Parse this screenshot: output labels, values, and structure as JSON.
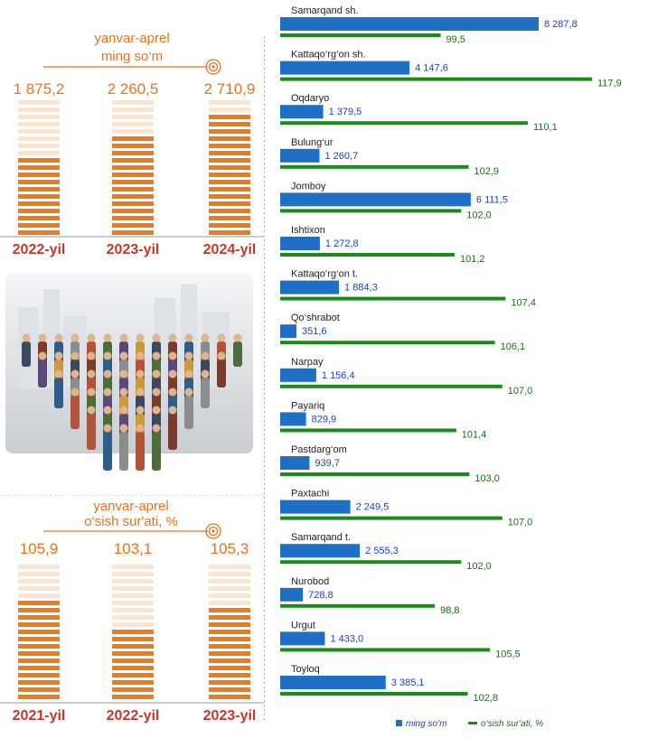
{
  "top_panel": {
    "title_line1": "yanvar-aprel",
    "title_line2": "ming so‘m"
  },
  "bottom_panel": {
    "title_line1": "yanvar-aprel",
    "title_line2": "o‘sish sur'ati, %"
  },
  "colors": {
    "orange": "#f07a1a",
    "orange_light": "#fde3cc",
    "blue": "#1f6fc5",
    "green": "#1a8a1a"
  },
  "chart_data": [
    {
      "type": "bar",
      "title": "yanvar-aprel ming so‘m",
      "categories": [
        "2022-yil",
        "2023-yil",
        "2024-yil"
      ],
      "values": [
        1875.2,
        2260.5,
        2710.9
      ],
      "value_labels": [
        "1 875,2",
        "2 260,5",
        "2 710,9"
      ],
      "ylim": [
        0,
        3100
      ]
    },
    {
      "type": "bar",
      "title": "yanvar-aprel o‘sish sur'ati, %",
      "categories": [
        "2021-yil",
        "2022-yil",
        "2023-yil"
      ],
      "values": [
        105.9,
        103.1,
        105.3
      ],
      "value_labels": [
        "105,9",
        "103,1",
        "105,3"
      ],
      "ylim": [
        95,
        110
      ]
    },
    {
      "type": "bar",
      "orientation": "horizontal",
      "categories": [
        "Samarqand sh.",
        "Kattaqo‘rg‘on sh.",
        "Oqdaryo",
        "Bulung‘ur",
        "Jomboy",
        "Ishtixon",
        "Kattaqo‘rg‘on t.",
        "Qo‘shrabot",
        "Narpay",
        "Payariq",
        "Pastdarg‘om",
        "Paxtachi",
        "Samarqand t.",
        "Nurobod",
        "Urgut",
        "Toyloq"
      ],
      "series": [
        {
          "name": "ming so‘m",
          "values": [
            8287.8,
            4147.6,
            1379.5,
            1260.7,
            6111.5,
            1272.8,
            1884.3,
            351.6,
            1156.4,
            829.9,
            939.7,
            2249.5,
            2555.3,
            728.8,
            1433.0,
            3385.1
          ],
          "value_labels": [
            "8 287,8",
            "4 147,6",
            "1 379,5",
            "1 260,7",
            "6 111,5",
            "1 272,8",
            "1 884,3",
            "351,6",
            "1 156,4",
            "829,9",
            "939,7",
            "2 249,5",
            "2 555,3",
            "728,8",
            "1 433,0",
            "3 385,1"
          ]
        },
        {
          "name": "o‘sish sur'ati, %",
          "values": [
            99.5,
            117.9,
            110.1,
            102.9,
            102.0,
            101.2,
            107.4,
            106.1,
            107.0,
            101.4,
            103.0,
            107.0,
            102.0,
            98.8,
            105.5,
            102.8
          ],
          "value_labels": [
            "99,5",
            "117,9",
            "110,1",
            "102,9",
            "102,0",
            "101,2",
            "107,4",
            "106,1",
            "107,0",
            "101,4",
            "103,0",
            "107,0",
            "102,0",
            "98,8",
            "105,5",
            "102,8"
          ]
        }
      ],
      "legend": "bottom"
    }
  ]
}
